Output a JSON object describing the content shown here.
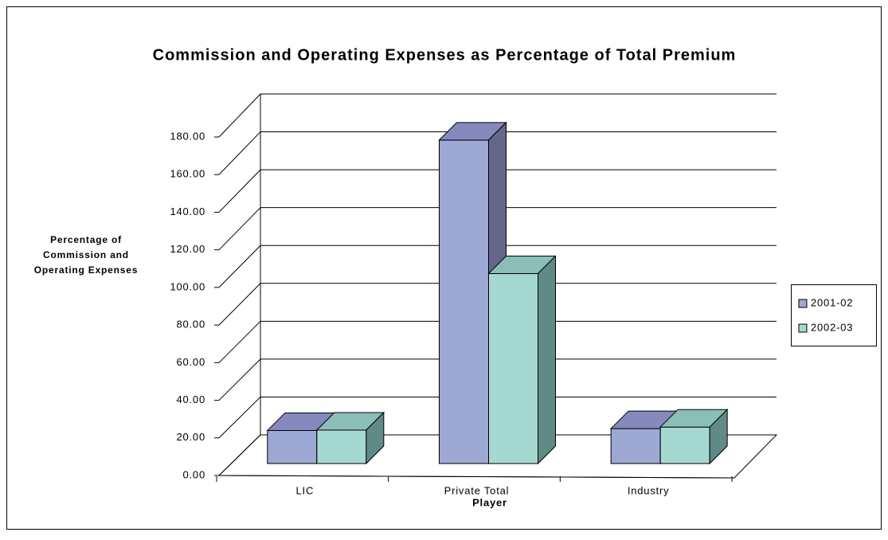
{
  "chart_data": {
    "type": "bar3d",
    "title": "Commission and Operating Expenses as Percentage of Total Premium",
    "xlabel": "Player",
    "ylabel": [
      "Percentage of",
      "Commission and",
      "Operating Expenses"
    ],
    "categories": [
      "LIC",
      "Private Total",
      "Industry"
    ],
    "series": [
      {
        "name": "2001-02",
        "color": "#9da8d4",
        "values": [
          17.6,
          172.0,
          18.6
        ]
      },
      {
        "name": "2002-03",
        "color": "#a6d8d2",
        "values": [
          17.8,
          101.0,
          19.4
        ]
      }
    ],
    "ylim": [
      0,
      180
    ],
    "yticks": [
      {
        "value": 0,
        "label": "0.00"
      },
      {
        "value": 20,
        "label": "20.00"
      },
      {
        "value": 40,
        "label": "40.00"
      },
      {
        "value": 60,
        "label": "60.00"
      },
      {
        "value": 80,
        "label": "80.00"
      },
      {
        "value": 100,
        "label": "100.00"
      },
      {
        "value": 120,
        "label": "120.00"
      },
      {
        "value": 140,
        "label": "140.00"
      },
      {
        "value": 160,
        "label": "160.00"
      },
      {
        "value": 180,
        "label": "180.00"
      }
    ],
    "grid": true,
    "legend": "right"
  }
}
